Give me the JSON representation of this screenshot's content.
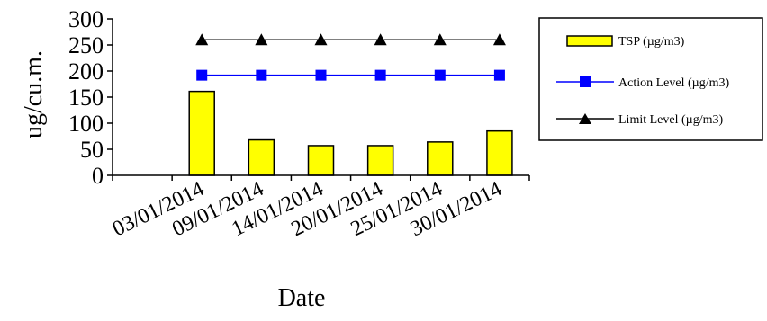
{
  "chart_data": {
    "type": "bar",
    "xlabel": "Date",
    "ylabel": "ug/cu.m.",
    "ylim": [
      0,
      300
    ],
    "yticks": [
      0,
      50,
      100,
      150,
      200,
      250,
      300
    ],
    "categories": [
      "",
      "03/01/2014",
      "09/01/2014",
      "14/01/2014",
      "20/01/2014",
      "25/01/2014",
      "30/01/2014"
    ],
    "series": [
      {
        "name": "TSP (µg/m3)",
        "type": "bar",
        "color": "#ffff00",
        "values": [
          null,
          161,
          68,
          57,
          57,
          64,
          85
        ]
      },
      {
        "name": "Action Level (µg/m3)",
        "type": "line",
        "marker": "square",
        "color": "#0000ff",
        "values": [
          null,
          192,
          192,
          192,
          192,
          192,
          192
        ]
      },
      {
        "name": "Limit Level (µg/m3)",
        "type": "line",
        "marker": "triangle",
        "color": "#000000",
        "values": [
          null,
          260,
          260,
          260,
          260,
          260,
          260
        ]
      }
    ],
    "legend_position": "right",
    "grid": false
  }
}
